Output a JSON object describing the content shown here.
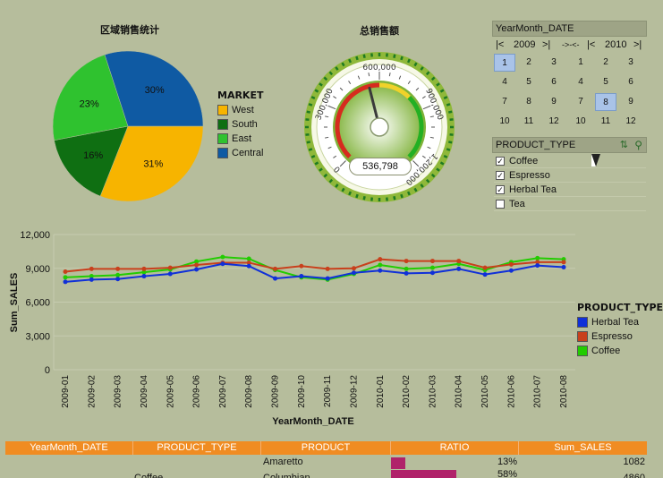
{
  "pie": {
    "title": "区域销售统计",
    "legend_title": "MARKET",
    "chart_data": {
      "type": "pie",
      "title": "区域销售统计",
      "labels": [
        "West",
        "South",
        "East",
        "Central"
      ],
      "values": [
        31,
        16,
        23,
        30
      ],
      "value_labels": [
        "31%",
        "16%",
        "23%",
        "30%"
      ],
      "colors": [
        "#f7b400",
        "#0f6f12",
        "#2fc22f",
        "#0f5aa3"
      ]
    }
  },
  "gauge": {
    "title": "总销售额",
    "value_display": "536,798",
    "value": 536798,
    "ticks": [
      "0",
      "300,000",
      "600,000",
      "900,000",
      "1,200,000"
    ],
    "range": [
      0,
      1200000
    ]
  },
  "calendar": {
    "header": "YearMonth_DATE",
    "nav": {
      "first": "|<",
      "prev": ">|",
      "mid": "->-<-",
      "next": "|<",
      "last": ">|"
    },
    "years": [
      "2009",
      "2010"
    ],
    "months_2009": [
      [
        "1",
        "2",
        "3"
      ],
      [
        "4",
        "5",
        "6"
      ],
      [
        "7",
        "8",
        "9"
      ],
      [
        "10",
        "11",
        "12"
      ]
    ],
    "months_2010": [
      [
        "1",
        "2",
        "3"
      ],
      [
        "4",
        "5",
        "6"
      ],
      [
        "7",
        "8",
        "9"
      ],
      [
        "10",
        "11",
        "12"
      ]
    ],
    "selected": {
      "2009": "1",
      "2010": "8"
    }
  },
  "product_type": {
    "header": "PRODUCT_TYPE",
    "items": [
      {
        "label": "Coffee",
        "checked": true
      },
      {
        "label": "Espresso",
        "checked": true
      },
      {
        "label": "Herbal Tea",
        "checked": true
      },
      {
        "label": "Tea",
        "checked": false
      }
    ]
  },
  "line": {
    "legend_title": "PRODUCT_TYPE",
    "chart_data": {
      "type": "line",
      "xlabel": "YearMonth_DATE",
      "ylabel": "Sum_SALES",
      "ylim": [
        0,
        12000
      ],
      "yticks": [
        "0",
        "3,000",
        "6,000",
        "9,000",
        "12,000"
      ],
      "ytick_values": [
        0,
        3000,
        6000,
        9000,
        12000
      ],
      "x": [
        "2009-01",
        "2009-02",
        "2009-03",
        "2009-04",
        "2009-05",
        "2009-06",
        "2009-07",
        "2009-08",
        "2009-09",
        "2009-10",
        "2009-11",
        "2009-12",
        "2010-01",
        "2010-02",
        "2010-03",
        "2010-04",
        "2010-05",
        "2010-06",
        "2010-07",
        "2010-08"
      ],
      "series": [
        {
          "name": "Herbal Tea",
          "color": "#1030d8",
          "values": [
            7800,
            8000,
            8050,
            8300,
            8500,
            8900,
            9400,
            9200,
            8100,
            8300,
            8100,
            8600,
            8800,
            8550,
            8600,
            8950,
            8450,
            8800,
            9250,
            9100
          ]
        },
        {
          "name": "Espresso",
          "color": "#c8401c",
          "values": [
            8700,
            8950,
            8950,
            8950,
            9050,
            9300,
            9500,
            9500,
            8950,
            9200,
            8950,
            9000,
            9800,
            9650,
            9650,
            9650,
            9050,
            9350,
            9550,
            9550
          ]
        },
        {
          "name": "Coffee",
          "color": "#22cc00",
          "values": [
            8200,
            8300,
            8400,
            8650,
            8900,
            9600,
            10000,
            9850,
            8850,
            8200,
            8000,
            8500,
            9300,
            8950,
            9050,
            9400,
            8850,
            9550,
            9900,
            9800
          ]
        }
      ],
      "grid": true,
      "legend_position": "right"
    }
  },
  "table": {
    "columns": [
      "YearMonth_DATE",
      "PRODUCT_TYPE",
      "PRODUCT",
      "RATIO",
      "Sum_SALES"
    ],
    "rows": [
      {
        "date": "",
        "type": "",
        "product": "Amaretto",
        "ratio": 13,
        "ratio_label": "13%",
        "sales": "1082"
      },
      {
        "date": "",
        "type": "Coffee",
        "product": "Columbian",
        "ratio": 58,
        "ratio_label": "58%",
        "sales": "4860"
      }
    ],
    "ratio_color": "#b0226a"
  }
}
